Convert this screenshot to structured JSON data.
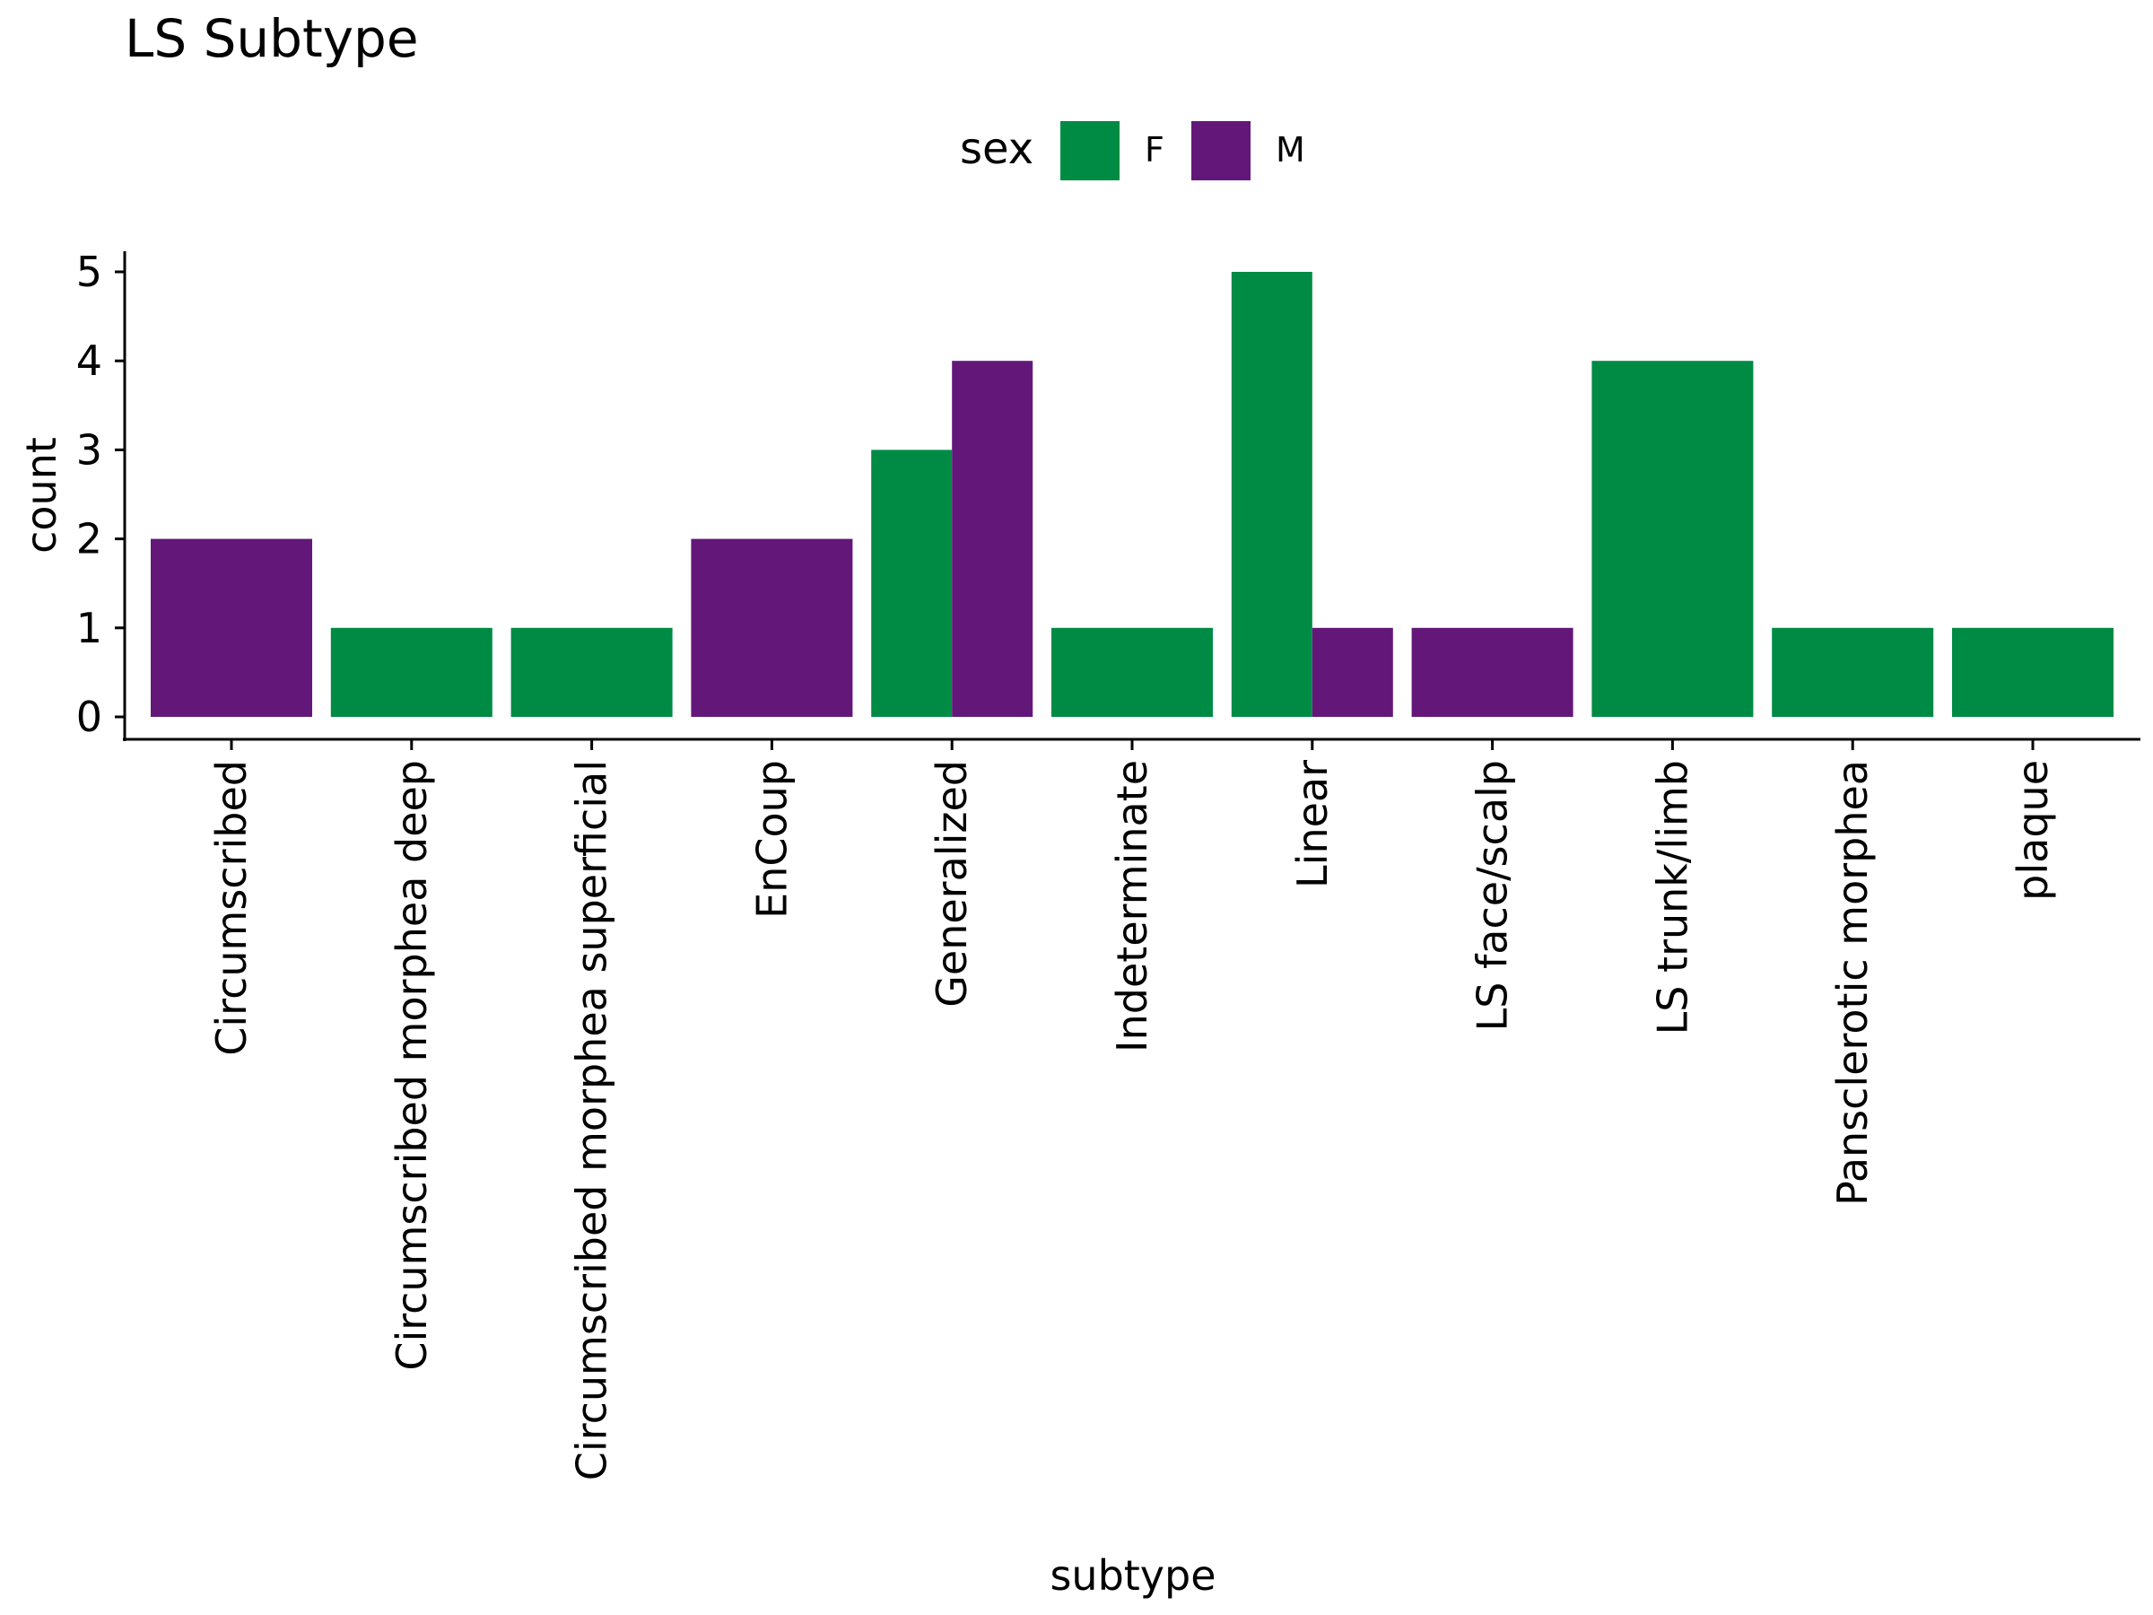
{
  "chart_data": {
    "type": "bar",
    "title": "LS Subtype",
    "xlabel": "subtype",
    "ylabel": "count",
    "ylim": [
      0,
      5.25
    ],
    "yticks": [
      0,
      1,
      2,
      3,
      4,
      5
    ],
    "grid": false,
    "legend": {
      "title": "sex",
      "placement": "top"
    },
    "categories": [
      "Circumscribed",
      "Circumscribed morphea deep",
      "Circumscribed morphea superficial",
      "EnCoup",
      "Generalized",
      "Indeterminate",
      "Linear",
      "LS face/scalp",
      "LS trunk/limb",
      "Pansclerotic morphea",
      "plaque"
    ],
    "series": [
      {
        "name": "F",
        "color": "#008B45",
        "values": [
          0,
          1,
          1,
          0,
          3,
          1,
          5,
          0,
          4,
          1,
          1
        ]
      },
      {
        "name": "M",
        "color": "#631879",
        "values": [
          2,
          0,
          0,
          2,
          4,
          0,
          1,
          1,
          0,
          0,
          0
        ]
      }
    ]
  }
}
